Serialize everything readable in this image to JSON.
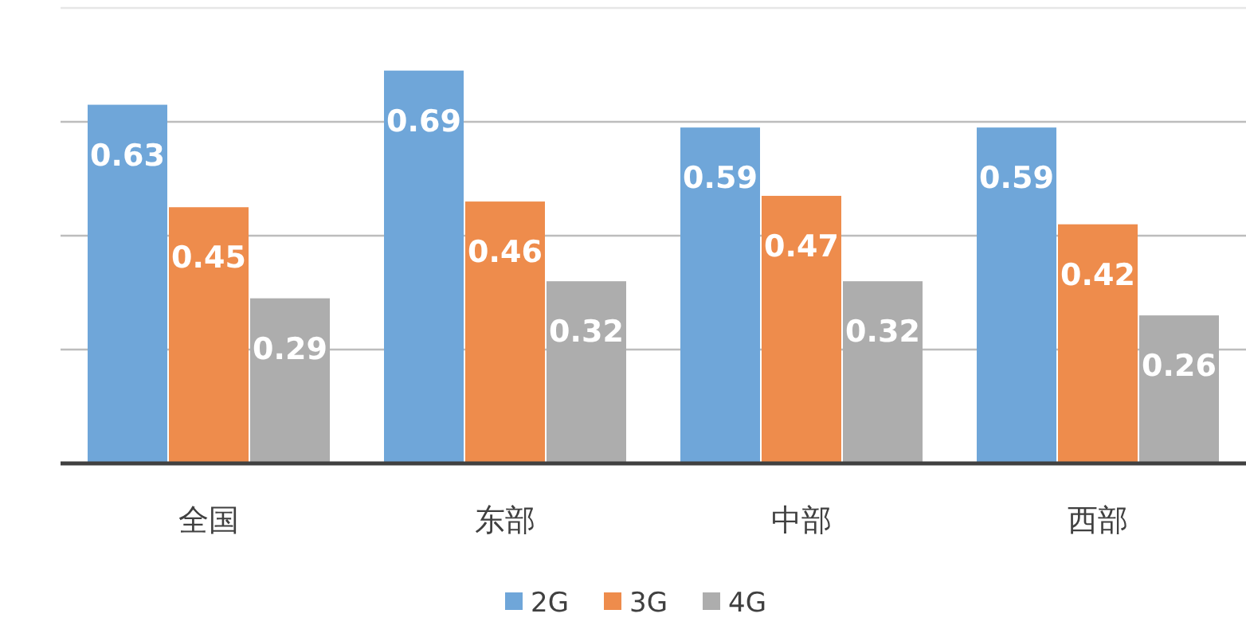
{
  "chart_data": {
    "type": "bar",
    "categories": [
      "全国",
      "东部",
      "中部",
      "西部"
    ],
    "series": [
      {
        "name": "2G",
        "color": "#6fa6d9",
        "values": [
          0.63,
          0.69,
          0.59,
          0.59
        ]
      },
      {
        "name": "3G",
        "color": "#ee8c4c",
        "values": [
          0.45,
          0.46,
          0.47,
          0.42
        ]
      },
      {
        "name": "4G",
        "color": "#adadad",
        "values": [
          0.29,
          0.32,
          0.32,
          0.26
        ]
      }
    ],
    "ylim": [
      0,
      0.8
    ],
    "yticks": [
      {
        "value": 0,
        "label": null
      },
      {
        "value": 0.2,
        "label": null
      },
      {
        "value": 0.4,
        "label": null
      },
      {
        "value": 0.6,
        "label": null
      },
      {
        "value": 0.8,
        "label": null
      }
    ],
    "tick_labels": "x",
    "grid": "y",
    "data_labels": true,
    "legend": "bottom"
  }
}
